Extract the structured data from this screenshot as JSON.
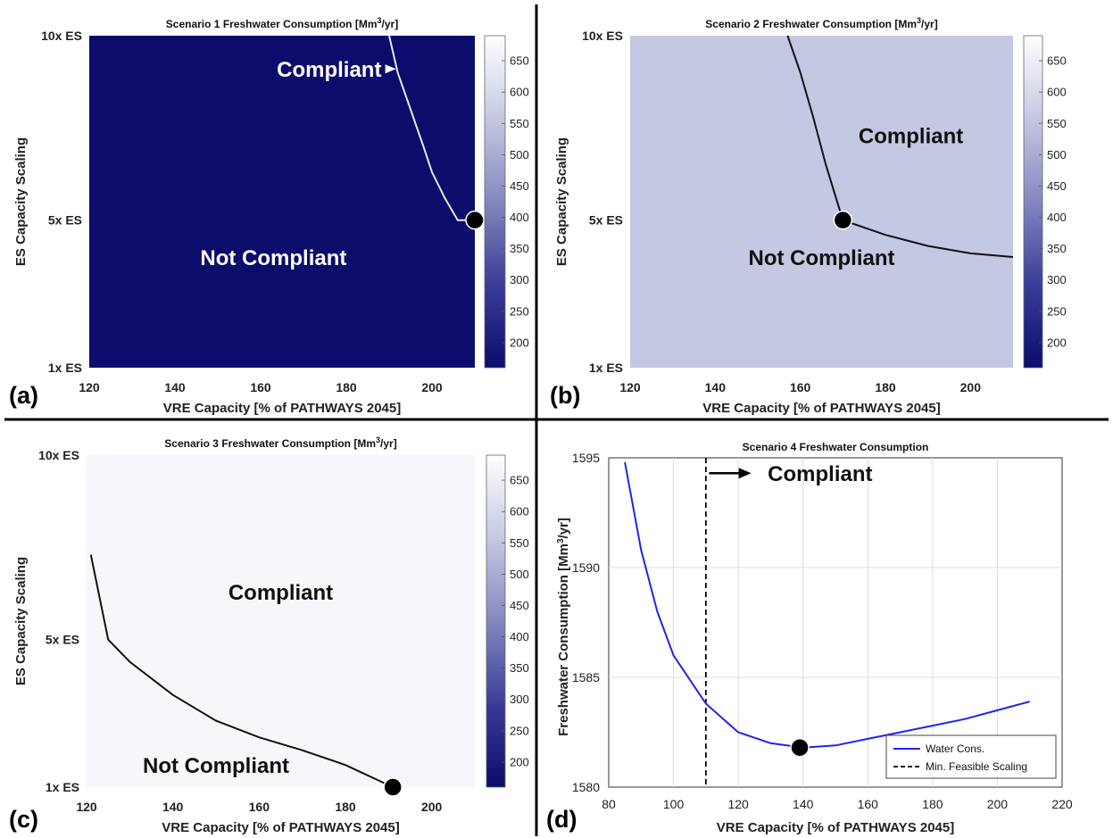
{
  "dividers": {
    "color": "#000000"
  },
  "colors": {
    "navy": "#0b0c6b",
    "panel_b_bg": "#c5c8e2",
    "panel_c_bg": "#f6f6fb",
    "white_line": "#e8e8f4",
    "series_blue": "#2222ee",
    "colormap": [
      "#0b0c6b",
      "#3a3d97",
      "#8587c0",
      "#c5c8e2",
      "#ffffff"
    ]
  },
  "chart_data": [
    {
      "panel": "a",
      "type": "heatmap",
      "panel_label": "(a)",
      "title": "Scenario 1 Freshwater Consumption [Mm³/yr]",
      "xlabel": "VRE Capacity [% of PATHWAYS 2045]",
      "ylabel": "ES Capacity Scaling",
      "xlim": [
        120,
        210
      ],
      "x_ticks": [
        120,
        140,
        160,
        180,
        200
      ],
      "y_ticks": [
        {
          "v": 1,
          "label": "1x ES"
        },
        {
          "v": 5,
          "label": "5x ES"
        },
        {
          "v": 10,
          "label": "10x ES"
        }
      ],
      "ylim": [
        1,
        10
      ],
      "fill_color": "#0b0c6b",
      "colorbar": {
        "min": 160,
        "max": 690,
        "ticks": [
          200,
          250,
          300,
          350,
          400,
          450,
          500,
          550,
          600,
          650
        ]
      },
      "boundary": {
        "color": "#e8e8f4",
        "points": [
          [
            190,
            10
          ],
          [
            192,
            9
          ],
          [
            195,
            8
          ],
          [
            198,
            7
          ],
          [
            200,
            6.3
          ],
          [
            203,
            5.6
          ],
          [
            206,
            5
          ],
          [
            210,
            5
          ]
        ]
      },
      "marker": [
        210,
        5
      ],
      "annotations": [
        {
          "text": "Compliant",
          "x": 176,
          "y": 9.1,
          "color": "#ffffff",
          "arrow_to": [
            192,
            9.1
          ]
        },
        {
          "text": "Not Compliant",
          "x": 163,
          "y": 4,
          "color": "#ffffff"
        }
      ]
    },
    {
      "panel": "b",
      "type": "heatmap",
      "panel_label": "(b)",
      "title": "Scenario 2 Freshwater Consumption [Mm³/yr]",
      "xlabel": "VRE Capacity [% of PATHWAYS 2045]",
      "ylabel": "ES Capacity Scaling",
      "xlim": [
        120,
        210
      ],
      "x_ticks": [
        120,
        140,
        160,
        180,
        200
      ],
      "y_ticks": [
        {
          "v": 1,
          "label": "1x ES"
        },
        {
          "v": 5,
          "label": "5x ES"
        },
        {
          "v": 10,
          "label": "10x ES"
        }
      ],
      "ylim": [
        1,
        10
      ],
      "fill_color": "#c5c8e2",
      "colorbar": {
        "min": 160,
        "max": 690,
        "ticks": [
          200,
          250,
          300,
          350,
          400,
          450,
          500,
          550,
          600,
          650
        ]
      },
      "boundary": {
        "color": "#111111",
        "points": [
          [
            157,
            10
          ],
          [
            160,
            9
          ],
          [
            163,
            7.8
          ],
          [
            166,
            6.5
          ],
          [
            170,
            5
          ],
          [
            180,
            4.6
          ],
          [
            190,
            4.3
          ],
          [
            200,
            4.1
          ],
          [
            210,
            4
          ]
        ]
      },
      "marker": [
        170,
        5
      ],
      "annotations": [
        {
          "text": "Compliant",
          "x": 186,
          "y": 7.3,
          "color": "#111111"
        },
        {
          "text": "Not Compliant",
          "x": 165,
          "y": 4,
          "color": "#111111"
        }
      ]
    },
    {
      "panel": "c",
      "type": "heatmap",
      "panel_label": "(c)",
      "title": "Scenario 3 Freshwater Consumption [Mm³/yr]",
      "xlabel": "VRE Capacity [% of PATHWAYS 2045]",
      "ylabel": "ES Capacity Scaling",
      "xlim": [
        120,
        210
      ],
      "x_ticks": [
        120,
        140,
        160,
        180,
        200
      ],
      "y_ticks": [
        {
          "v": 1,
          "label": "1x ES"
        },
        {
          "v": 5,
          "label": "5x ES"
        },
        {
          "v": 10,
          "label": "10x ES"
        }
      ],
      "ylim": [
        1,
        10
      ],
      "fill_color": "#f6f6fb",
      "colorbar": {
        "min": 160,
        "max": 690,
        "ticks": [
          200,
          250,
          300,
          350,
          400,
          450,
          500,
          550,
          600,
          650
        ]
      },
      "boundary": {
        "color": "#111111",
        "points": [
          [
            121,
            7.3
          ],
          [
            125,
            5
          ],
          [
            130,
            4.4
          ],
          [
            140,
            3.5
          ],
          [
            150,
            2.8
          ],
          [
            160,
            2.35
          ],
          [
            170,
            2
          ],
          [
            180,
            1.6
          ],
          [
            191,
            1
          ]
        ]
      },
      "marker": [
        191,
        1
      ],
      "annotations": [
        {
          "text": "Compliant",
          "x": 165,
          "y": 6.3,
          "color": "#111111"
        },
        {
          "text": "Not Compliant",
          "x": 150,
          "y": 1.6,
          "color": "#111111"
        }
      ]
    },
    {
      "panel": "d",
      "type": "line",
      "panel_label": "(d)",
      "title": "Scenario 4 Freshwater Consumption",
      "xlabel": "VRE Capacity [% of PATHWAYS 2045]",
      "ylabel": "Freshwater Consumption [Mm³/yr]",
      "xlim": [
        80,
        220
      ],
      "ylim": [
        1580,
        1595
      ],
      "x_ticks": [
        80,
        100,
        120,
        140,
        160,
        180,
        200,
        220
      ],
      "y_ticks": [
        1580,
        1585,
        1590,
        1595
      ],
      "grid": true,
      "legend_position": "bottom-right",
      "series": [
        {
          "name": "Water Cons.",
          "color": "#2222ee",
          "x": [
            85,
            90,
            95,
            100,
            110,
            120,
            130,
            140,
            150,
            160,
            170,
            180,
            190,
            200,
            210
          ],
          "y": [
            1594.8,
            1590.8,
            1588.0,
            1586.0,
            1583.8,
            1582.5,
            1582.0,
            1581.8,
            1581.9,
            1582.2,
            1582.5,
            1582.8,
            1583.1,
            1583.5,
            1583.9
          ]
        }
      ],
      "vline": {
        "name": "Min. Feasible Scaling",
        "x": 110
      },
      "marker": [
        139,
        1581.8
      ],
      "annotations": [
        {
          "text": "Compliant",
          "x": 128,
          "y": 1594.3,
          "color": "#111111",
          "arrow_from": [
            111,
            1594.3
          ],
          "arrow_to": [
            124,
            1594.3
          ]
        }
      ]
    }
  ]
}
